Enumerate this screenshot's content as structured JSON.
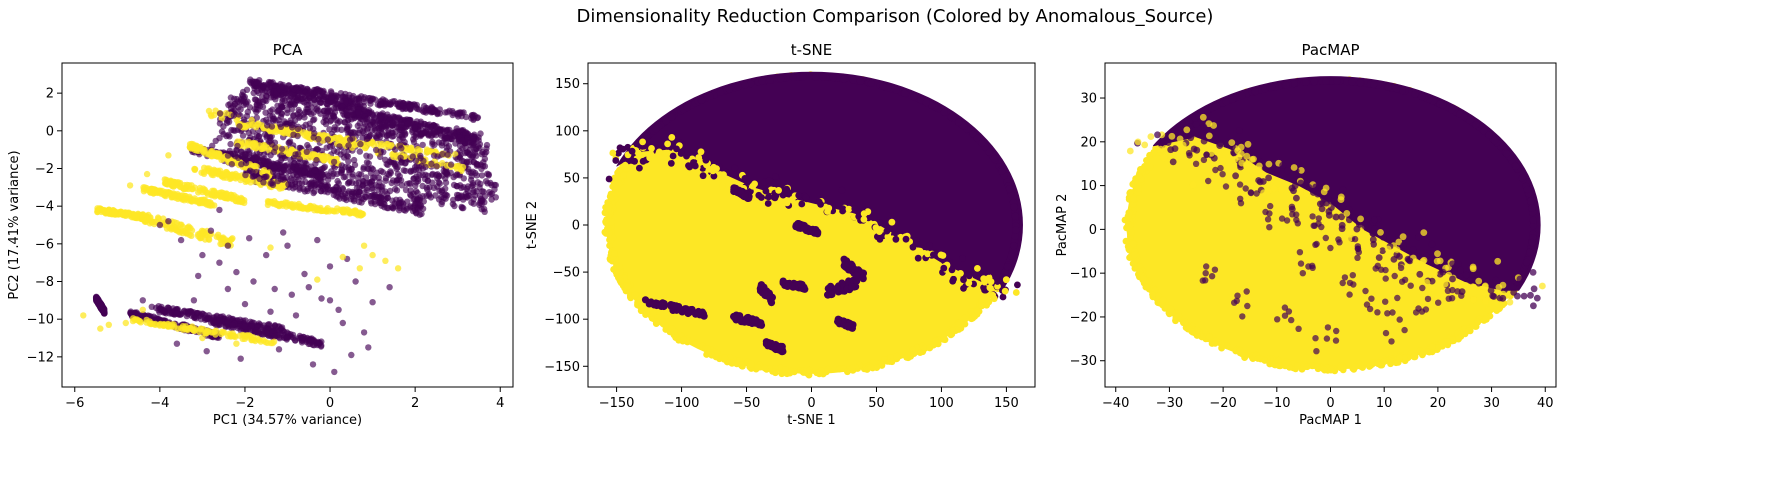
{
  "figure": {
    "suptitle": "Dimensionality Reduction Comparison (Colored by Anomalous_Source)",
    "colors": {
      "class0": "#440154",
      "class1": "#fde725",
      "axis": "#000000"
    }
  },
  "chart_data": [
    {
      "type": "scatter",
      "title": "PCA",
      "xlabel": "PC1 (34.57% variance)",
      "ylabel": "PC2 (17.41% variance)",
      "xlim": [
        -6.3,
        4.3
      ],
      "ylim": [
        -13.6,
        3.6
      ],
      "xticks": [
        -6,
        -4,
        -2,
        0,
        2,
        4
      ],
      "yticks": [
        2,
        0,
        -2,
        -4,
        -6,
        -8,
        -10,
        -12
      ],
      "grid": false,
      "series": [
        {
          "color": "#440154",
          "alpha": 0.65,
          "bands": [
            {
              "x0": -1.9,
              "y0": 2.6,
              "x1": 3.5,
              "y1": 0.7,
              "w": 0.35
            },
            {
              "x0": -2.1,
              "y0": 2.0,
              "x1": 3.6,
              "y1": -0.5,
              "w": 0.7
            },
            {
              "x0": -2.4,
              "y0": 1.4,
              "x1": 3.7,
              "y1": -1.2,
              "w": 0.9
            },
            {
              "x0": -2.6,
              "y0": 0.6,
              "x1": 3.8,
              "y1": -2.2,
              "w": 1.0
            },
            {
              "x0": -2.8,
              "y0": -0.3,
              "x1": 3.9,
              "y1": -3.2,
              "w": 1.0
            },
            {
              "x0": -2.5,
              "y0": -1.3,
              "x1": 3.7,
              "y1": -4.0,
              "w": 0.8
            },
            {
              "x0": -2.0,
              "y0": -2.3,
              "x1": 2.2,
              "y1": -4.2,
              "w": 0.6
            },
            {
              "x0": -3.3,
              "y0": -1.0,
              "x1": -0.2,
              "y1": -2.3,
              "w": 0.4
            },
            {
              "x0": -5.5,
              "y0": -8.9,
              "x1": -5.3,
              "y1": -9.6,
              "w": 0.25
            },
            {
              "x0": -4.2,
              "y0": -9.4,
              "x1": -1.0,
              "y1": -10.6,
              "w": 0.35
            },
            {
              "x0": -2.8,
              "y0": -10.1,
              "x1": -0.2,
              "y1": -11.3,
              "w": 0.35
            },
            {
              "x0": -4.7,
              "y0": -9.7,
              "x1": -2.6,
              "y1": -10.9,
              "w": 0.3
            },
            {
              "x0": -1.8,
              "y0": 2.4,
              "x1": 0.8,
              "y1": 1.3,
              "w": 0.5
            },
            {
              "x0": 0.5,
              "y0": 1.0,
              "x1": 3.5,
              "y1": -0.5,
              "w": 0.6
            }
          ],
          "scatter": [
            {
              "x": -4.0,
              "y": -5.0
            },
            {
              "x": -3.5,
              "y": -5.8
            },
            {
              "x": -3.0,
              "y": -6.6
            },
            {
              "x": -2.6,
              "y": -7.0
            },
            {
              "x": -2.2,
              "y": -7.5
            },
            {
              "x": -1.8,
              "y": -8.0
            },
            {
              "x": -1.3,
              "y": -8.4
            },
            {
              "x": -0.9,
              "y": -8.7
            },
            {
              "x": -0.5,
              "y": -8.3
            },
            {
              "x": -0.2,
              "y": -8.9
            },
            {
              "x": 0.2,
              "y": -9.5
            },
            {
              "x": 0.6,
              "y": -8.0
            },
            {
              "x": -2.4,
              "y": -6.1
            },
            {
              "x": -1.5,
              "y": -6.6
            },
            {
              "x": -1.0,
              "y": -6.1
            },
            {
              "x": -0.6,
              "y": -7.6
            },
            {
              "x": 0.0,
              "y": -7.2
            },
            {
              "x": 0.4,
              "y": -6.8
            },
            {
              "x": -3.2,
              "y": -9.0
            },
            {
              "x": -2.0,
              "y": -9.2
            },
            {
              "x": -1.4,
              "y": -9.6
            },
            {
              "x": -0.8,
              "y": -9.8
            },
            {
              "x": 0.3,
              "y": -10.2
            },
            {
              "x": 0.8,
              "y": -10.7
            },
            {
              "x": -3.6,
              "y": -11.3
            },
            {
              "x": -2.9,
              "y": -11.7
            },
            {
              "x": -2.1,
              "y": -12.1
            },
            {
              "x": -1.2,
              "y": -11.6
            },
            {
              "x": -0.4,
              "y": -12.4
            },
            {
              "x": 0.1,
              "y": -12.8
            },
            {
              "x": -2.8,
              "y": -5.3
            },
            {
              "x": -1.9,
              "y": -5.7
            },
            {
              "x": -3.8,
              "y": -4.8
            },
            {
              "x": 1.0,
              "y": -9.1
            },
            {
              "x": 0.9,
              "y": -11.5
            },
            {
              "x": -1.6,
              "y": -10.8
            },
            {
              "x": -2.4,
              "y": -8.4
            },
            {
              "x": -3.1,
              "y": -7.7
            },
            {
              "x": 0.0,
              "y": -9.0
            },
            {
              "x": -0.3,
              "y": -5.8
            },
            {
              "x": -1.1,
              "y": -5.4
            },
            {
              "x": 0.5,
              "y": -11.9
            },
            {
              "x": -4.4,
              "y": -9.0
            },
            {
              "x": -2.6,
              "y": -4.2
            },
            {
              "x": 1.4,
              "y": -8.3
            }
          ]
        },
        {
          "color": "#fde725",
          "alpha": 0.75,
          "bands": [
            {
              "x0": -2.9,
              "y0": 1.0,
              "x1": 3.2,
              "y1": -2.1,
              "w": 0.35
            },
            {
              "x0": -2.2,
              "y0": 0.3,
              "x1": 3.0,
              "y1": -1.3,
              "w": 0.2
            },
            {
              "x0": -2.2,
              "y0": -0.6,
              "x1": 0.2,
              "y1": -1.6,
              "w": 0.3
            },
            {
              "x0": -3.3,
              "y0": -0.8,
              "x1": -1.4,
              "y1": -2.3,
              "w": 0.3
            },
            {
              "x0": -3.2,
              "y0": -2.0,
              "x1": -1.0,
              "y1": -3.0,
              "w": 0.35
            },
            {
              "x0": -3.9,
              "y0": -2.7,
              "x1": -2.0,
              "y1": -3.7,
              "w": 0.3
            },
            {
              "x0": -4.4,
              "y0": -3.1,
              "x1": -2.7,
              "y1": -3.9,
              "w": 0.25
            },
            {
              "x0": -5.5,
              "y0": -4.2,
              "x1": -4.3,
              "y1": -4.6,
              "w": 0.25
            },
            {
              "x0": -4.4,
              "y0": -4.6,
              "x1": -2.2,
              "y1": -6.0,
              "w": 0.5
            },
            {
              "x0": -4.7,
              "y0": -10.0,
              "x1": -1.3,
              "y1": -11.2,
              "w": 0.25
            },
            {
              "x0": -1.5,
              "y0": -3.8,
              "x1": 0.8,
              "y1": -4.4,
              "w": 0.25
            }
          ],
          "scatter": [
            {
              "x": -5.8,
              "y": -9.8
            },
            {
              "x": -5.2,
              "y": -10.3
            },
            {
              "x": -4.8,
              "y": -10.2
            },
            {
              "x": -3.0,
              "y": -11.0
            },
            {
              "x": -2.2,
              "y": -11.3
            },
            {
              "x": 0.7,
              "y": -7.3
            },
            {
              "x": 1.0,
              "y": -6.6
            },
            {
              "x": 1.3,
              "y": -6.9
            },
            {
              "x": 1.6,
              "y": -7.3
            },
            {
              "x": 0.8,
              "y": -6.1
            },
            {
              "x": 0.3,
              "y": -6.7
            },
            {
              "x": -0.3,
              "y": -7.9
            },
            {
              "x": -4.7,
              "y": -2.9
            },
            {
              "x": -4.3,
              "y": -2.3
            },
            {
              "x": -3.8,
              "y": -1.3
            },
            {
              "x": -1.4,
              "y": -6.2
            },
            {
              "x": -5.4,
              "y": -10.5
            },
            {
              "x": -4.4,
              "y": -9.5
            }
          ]
        }
      ]
    },
    {
      "type": "scatter",
      "title": "t-SNE",
      "xlabel": "t-SNE 1",
      "ylabel": "t-SNE 2",
      "xlim": [
        -172,
        172
      ],
      "ylim": [
        -172,
        172
      ],
      "xticks": [
        -150,
        -100,
        -50,
        0,
        50,
        100,
        150
      ],
      "yticks": [
        150,
        100,
        50,
        0,
        -50,
        -100,
        -150
      ],
      "grid": false,
      "series": [
        {
          "color": "#fde725",
          "alpha": 1.0,
          "ellipse": {
            "cx": 0,
            "cy": 0,
            "rx": 158,
            "ry": 158
          },
          "region": "lower-left"
        },
        {
          "color": "#440154",
          "alpha": 1.0,
          "boundary": [
            [
              -150,
              62
            ],
            [
              -130,
              78
            ],
            [
              -110,
              80
            ],
            [
              -80,
              62
            ],
            [
              -45,
              40
            ],
            [
              -20,
              30
            ],
            [
              10,
              20
            ],
            [
              40,
              10
            ],
            [
              70,
              -15
            ],
            [
              100,
              -40
            ],
            [
              130,
              -60
            ],
            [
              150,
              -70
            ]
          ],
          "islands": [
            {
              "x0": -130,
              "y0": -80,
              "x1": -82,
              "y1": -96,
              "w": 6
            },
            {
              "x0": -60,
              "y0": -98,
              "x1": -38,
              "y1": -104,
              "w": 6
            },
            {
              "x0": -35,
              "y0": -126,
              "x1": -22,
              "y1": -132,
              "w": 6
            },
            {
              "x0": -22,
              "y0": -62,
              "x1": -5,
              "y1": -66,
              "w": 5
            },
            {
              "x0": 12,
              "y0": -70,
              "x1": 35,
              "y1": -62,
              "w": 10
            },
            {
              "x0": 25,
              "y0": -40,
              "x1": 40,
              "y1": -55,
              "w": 8
            },
            {
              "x0": -12,
              "y0": 0,
              "x1": 5,
              "y1": -8,
              "w": 5
            },
            {
              "x0": -40,
              "y0": -65,
              "x1": -30,
              "y1": -80,
              "w": 8
            },
            {
              "x0": 20,
              "y0": -102,
              "x1": 32,
              "y1": -108,
              "w": 5
            },
            {
              "x0": -60,
              "y0": 38,
              "x1": -48,
              "y1": 30,
              "w": 5
            }
          ]
        }
      ]
    },
    {
      "type": "scatter",
      "title": "PacMAP",
      "xlabel": "PacMAP 1",
      "ylabel": "PacMAP 2",
      "xlim": [
        -42,
        42
      ],
      "ylim": [
        -36,
        38
      ],
      "xticks": [
        -40,
        -30,
        -20,
        -10,
        0,
        10,
        20,
        30,
        40
      ],
      "yticks": [
        30,
        20,
        10,
        0,
        -10,
        -20,
        -30
      ],
      "grid": false,
      "series": [
        {
          "color": "#fde725",
          "alpha": 0.9,
          "ellipse": {
            "cx": 0,
            "cy": 1,
            "rx": 38,
            "ry": 33
          },
          "region": "lower-left"
        },
        {
          "color": "#440154",
          "alpha": 0.9,
          "boundary": [
            [
              -33,
              19
            ],
            [
              -25,
              21
            ],
            [
              -18,
              18
            ],
            [
              -12,
              13
            ],
            [
              -6,
              10
            ],
            [
              0,
              6
            ],
            [
              6,
              0
            ],
            [
              12,
              -4
            ],
            [
              18,
              -8
            ],
            [
              25,
              -12
            ],
            [
              32,
              -14
            ],
            [
              38,
              -14
            ]
          ],
          "scatter_mix": [
            {
              "x": -15,
              "y": 8
            },
            {
              "x": -12,
              "y": 4
            },
            {
              "x": -8,
              "y": 2
            },
            {
              "x": -4,
              "y": 0
            },
            {
              "x": 0,
              "y": -3
            },
            {
              "x": 5,
              "y": -5
            },
            {
              "x": 10,
              "y": -10
            },
            {
              "x": 14,
              "y": -13
            },
            {
              "x": -20,
              "y": 12
            },
            {
              "x": -25,
              "y": 15
            },
            {
              "x": -6,
              "y": -8
            },
            {
              "x": 3,
              "y": -12
            },
            {
              "x": 8,
              "y": -18
            },
            {
              "x": 12,
              "y": -22
            },
            {
              "x": -2,
              "y": -25
            },
            {
              "x": -8,
              "y": -20
            },
            {
              "x": -18,
              "y": -16
            },
            {
              "x": -22,
              "y": -10
            },
            {
              "x": 18,
              "y": -19
            },
            {
              "x": 22,
              "y": -15
            }
          ]
        }
      ]
    }
  ]
}
